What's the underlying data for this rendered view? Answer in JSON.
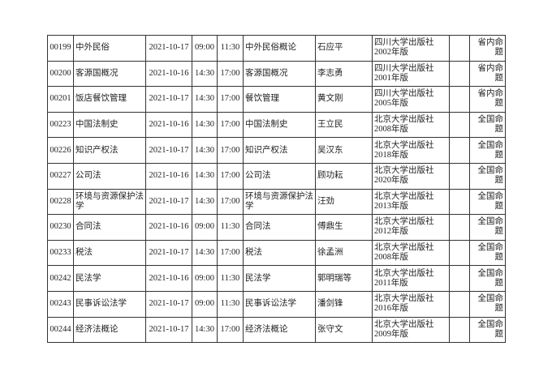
{
  "rows": [
    {
      "code": "00199",
      "course": "中外民俗",
      "date": "2021-10-17",
      "start": "09:00",
      "end": "11:30",
      "textbook": "中外民俗概论",
      "author": "石应平",
      "publisher": "四川大学出版社2002年版",
      "note": "",
      "type": "省内命题"
    },
    {
      "code": "00200",
      "course": "客源国概况",
      "date": "2021-10-16",
      "start": "14:30",
      "end": "17:00",
      "textbook": "客源国概况",
      "author": "李志勇",
      "publisher": "四川大学出版社2001年版",
      "note": "",
      "type": "省内命题"
    },
    {
      "code": "00201",
      "course": "饭店餐饮管理",
      "date": "2021-10-17",
      "start": "14:30",
      "end": "17:00",
      "textbook": "餐饮管理",
      "author": "黄文刚",
      "publisher": "四川大学出版社2005年版",
      "note": "",
      "type": "省内命题"
    },
    {
      "code": "00223",
      "course": "中国法制史",
      "date": "2021-10-16",
      "start": "14:30",
      "end": "17:00",
      "textbook": "中国法制史",
      "author": "王立民",
      "publisher": "北京大学出版社2008年版",
      "note": "",
      "type": "全国命题"
    },
    {
      "code": "00226",
      "course": "知识产权法",
      "date": "2021-10-17",
      "start": "14:30",
      "end": "17:00",
      "textbook": "知识产权法",
      "author": "吴汉东",
      "publisher": "北京大学出版社2018年版",
      "note": "",
      "type": "全国命题"
    },
    {
      "code": "00227",
      "course": "公司法",
      "date": "2021-10-16",
      "start": "14:30",
      "end": "17:00",
      "textbook": "公司法",
      "author": "顾功耘",
      "publisher": "北京大学出版社2020年版",
      "note": "",
      "type": "全国命题"
    },
    {
      "code": "00228",
      "course": "环境与资源保护法学",
      "date": "2021-10-17",
      "start": "14:30",
      "end": "17:00",
      "textbook": "环境与资源保护法学",
      "author": "汪劲",
      "publisher": "北京大学出版社2013年版",
      "note": "",
      "type": "全国命题"
    },
    {
      "code": "00230",
      "course": "合同法",
      "date": "2021-10-16",
      "start": "09:00",
      "end": "11:30",
      "textbook": "合同法",
      "author": "傅鼎生",
      "publisher": "北京大学出版社2012年版",
      "note": "",
      "type": "全国命题"
    },
    {
      "code": "00233",
      "course": "税法",
      "date": "2021-10-17",
      "start": "14:30",
      "end": "17:00",
      "textbook": "税法",
      "author": "徐孟洲",
      "publisher": "北京大学出版社2008年版",
      "note": "",
      "type": "全国命题"
    },
    {
      "code": "00242",
      "course": "民法学",
      "date": "2021-10-16",
      "start": "09:00",
      "end": "11:30",
      "textbook": "民法学",
      "author": "郭明瑞等",
      "publisher": "北京大学出版社2011年版",
      "note": "",
      "type": "全国命题"
    },
    {
      "code": "00243",
      "course": "民事诉讼法学",
      "date": "2021-10-17",
      "start": "09:00",
      "end": "11:30",
      "textbook": "民事诉讼法学",
      "author": "潘剑锋",
      "publisher": "北京大学出版社2016年版",
      "note": "",
      "type": "全国命题"
    },
    {
      "code": "00244",
      "course": "经济法概论",
      "date": "2021-10-17",
      "start": "14:30",
      "end": "17:00",
      "textbook": "经济法概论",
      "author": "张守文",
      "publisher": "北京大学出版社2009年版",
      "note": "",
      "type": "全国命题"
    }
  ]
}
